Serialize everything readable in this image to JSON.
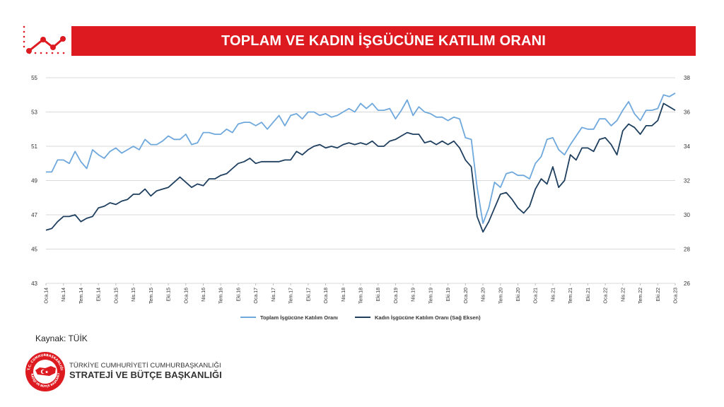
{
  "header": {
    "title": "TOPLAM VE KADIN İŞGÜCÜNE KATILIM ORANI"
  },
  "source": "Kaynak: TÜİK",
  "org": {
    "line1": "TÜRKİYE CUMHURİYETİ CUMHURBAŞKANLIĞI",
    "line2": "STRATEJİ VE BÜTÇE BAŞKANLIĞI",
    "emblem_text_top": "T.C. CUMHURBAŞKANLIĞI",
    "emblem_text_bottom": "STRATEJİ VE BÜTÇE BAŞKANLIĞI"
  },
  "colors": {
    "accent": "#dd1a1f",
    "total_series": "#6fa8dc",
    "women_series": "#1f3f5f"
  },
  "chart_data": {
    "type": "line",
    "x_tick_labels": [
      "Oca.14",
      "Nis.14",
      "Tem.14",
      "Eki.14",
      "Oca.15",
      "Nis.15",
      "Tem.15",
      "Eki.15",
      "Oca.16",
      "Nis.16",
      "Tem.16",
      "Eki.16",
      "Oca.17",
      "Nis.17",
      "Tem.17",
      "Eki.17",
      "Oca.18",
      "Nis.18",
      "Tem.18",
      "Eki.18",
      "Oca.19",
      "Nis.19",
      "Tem.19",
      "Eki.19",
      "Oca.20",
      "Nis.20",
      "Tem.20",
      "Eki.20",
      "Oca.21",
      "Nis.21",
      "Tem.21",
      "Eki.21",
      "Oca.22",
      "Nis.22",
      "Tem.22",
      "Eki.22",
      "Oca.23"
    ],
    "left_axis": {
      "min": 43,
      "max": 55,
      "ticks": [
        "43",
        "45",
        "47",
        "49",
        "51",
        "53",
        "55"
      ]
    },
    "right_axis": {
      "min": 26,
      "max": 38,
      "ticks": [
        "26",
        "28",
        "30",
        "32",
        "34",
        "36",
        "38"
      ]
    },
    "legend_position": "bottom",
    "series": [
      {
        "name": "Toplam İşgücüne Katılım Oranı",
        "axis": "left",
        "values": [
          49.5,
          49.5,
          50.2,
          50.2,
          50.0,
          50.7,
          50.1,
          49.7,
          50.8,
          50.5,
          50.3,
          50.7,
          50.9,
          50.6,
          50.8,
          51.0,
          50.8,
          51.4,
          51.1,
          51.1,
          51.3,
          51.6,
          51.4,
          51.4,
          51.7,
          51.1,
          51.2,
          51.8,
          51.8,
          51.7,
          51.7,
          52.0,
          51.8,
          52.3,
          52.4,
          52.4,
          52.2,
          52.4,
          52.0,
          52.4,
          52.8,
          52.2,
          52.8,
          52.9,
          52.6,
          53.0,
          53.0,
          52.8,
          52.9,
          52.7,
          52.8,
          53.0,
          53.2,
          53.0,
          53.5,
          53.2,
          53.5,
          53.1,
          53.1,
          53.2,
          52.6,
          53.1,
          53.7,
          52.8,
          53.3,
          53.0,
          52.9,
          52.7,
          52.7,
          52.5,
          52.7,
          52.6,
          51.5,
          51.4,
          48.6,
          46.5,
          47.4,
          48.9,
          48.6,
          49.4,
          49.5,
          49.3,
          49.3,
          49.1,
          50.0,
          50.4,
          51.4,
          51.5,
          50.8,
          50.5,
          51.1,
          51.6,
          52.1,
          52.0,
          52.0,
          52.6,
          52.6,
          52.2,
          52.5,
          53.1,
          53.6,
          52.9,
          52.5,
          53.1,
          53.1,
          53.2,
          54.0,
          53.9,
          54.1
        ]
      },
      {
        "name": "Kadın İşgücüne Katılım Oranı (Sağ Eksen)",
        "axis": "right",
        "values": [
          29.1,
          29.2,
          29.6,
          29.9,
          29.9,
          30.0,
          29.6,
          29.8,
          29.9,
          30.4,
          30.5,
          30.7,
          30.6,
          30.8,
          30.9,
          31.2,
          31.2,
          31.5,
          31.1,
          31.4,
          31.5,
          31.6,
          31.9,
          32.2,
          31.9,
          31.6,
          31.8,
          31.7,
          32.1,
          32.1,
          32.3,
          32.4,
          32.7,
          33.0,
          33.1,
          33.3,
          33.0,
          33.1,
          33.1,
          33.1,
          33.1,
          33.2,
          33.2,
          33.7,
          33.5,
          33.8,
          34.0,
          34.1,
          33.9,
          34.0,
          33.9,
          34.1,
          34.2,
          34.1,
          34.2,
          34.1,
          34.3,
          34.0,
          34.0,
          34.3,
          34.4,
          34.6,
          34.8,
          34.7,
          34.7,
          34.2,
          34.3,
          34.1,
          34.3,
          34.1,
          34.3,
          33.9,
          33.2,
          32.8,
          29.9,
          29.0,
          29.6,
          30.4,
          31.2,
          31.3,
          30.9,
          30.4,
          30.1,
          30.5,
          31.5,
          32.1,
          31.8,
          32.8,
          31.6,
          32.0,
          33.5,
          33.2,
          33.9,
          33.9,
          33.7,
          34.4,
          34.5,
          34.1,
          33.5,
          34.9,
          35.3,
          35.1,
          34.7,
          35.2,
          35.2,
          35.5,
          36.5,
          36.3,
          36.1
        ]
      }
    ]
  }
}
